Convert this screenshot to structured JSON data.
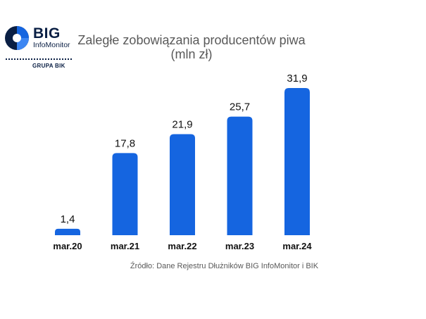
{
  "logo": {
    "brand": "BIG",
    "product": "InfoMonitor",
    "group": "GRUPA BIK"
  },
  "source_note": "Źródło: Dane Rejestru Dłużników BIG InfoMonitor i BIK",
  "colors": {
    "bar": "#1565e0",
    "text": "#595959",
    "label": "#111111",
    "logo_blue": "#1565e0",
    "logo_navy": "#0a1f44"
  },
  "chart_data": {
    "type": "bar",
    "title": "Zaległe zobowiązania producentów piwa",
    "subtitle": "(mln zł)",
    "categories": [
      "mar.20",
      "mar.21",
      "mar.22",
      "mar.23",
      "mar.24"
    ],
    "values": [
      1.4,
      17.8,
      21.9,
      25.7,
      31.9
    ],
    "value_labels": [
      "1,4",
      "17,8",
      "21,9",
      "25,7",
      "31,9"
    ],
    "ylim": [
      0,
      31.9
    ],
    "grid": false,
    "legend": "none",
    "y_axis_visible": false
  }
}
